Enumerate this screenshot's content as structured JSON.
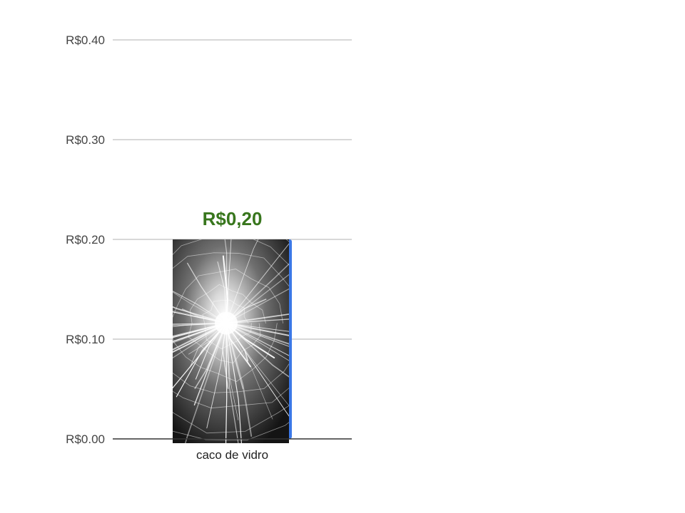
{
  "chart_data": {
    "type": "bar",
    "title": "",
    "xlabel": "",
    "ylabel": "",
    "categories": [
      "caco de vidro"
    ],
    "values": [
      0.2
    ],
    "data_labels": [
      "R$0,20"
    ],
    "yticks": [
      0,
      0.1,
      0.2,
      0.3,
      0.4
    ],
    "ytick_labels": [
      "R$0.00",
      "R$0.10",
      "R$0.20",
      "R$0.30",
      "R$0.40"
    ],
    "ylim": [
      0,
      0.4
    ],
    "grid": true,
    "legend": "none",
    "bar_fill": "shattered-glass-image",
    "colors": {
      "bar": "#3b78e7",
      "data_label": "#38761d",
      "grid": "#cccccc",
      "baseline": "#333333"
    }
  }
}
